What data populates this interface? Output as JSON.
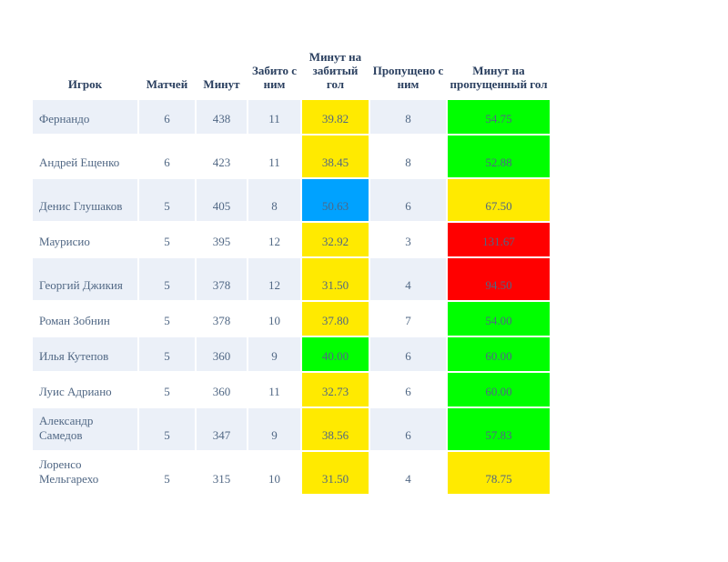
{
  "chart_data": {
    "type": "table",
    "columns": [
      "Игрок",
      "Матчей",
      "Минут",
      "Забито с ним",
      "Минут на забитый гол",
      "Пропущено с ним",
      "Минут на пропущенный гол"
    ],
    "rows": [
      {
        "player": "Фернандо",
        "matches": "6",
        "minutes": "438",
        "scored": "11",
        "min_per_scored": "39.82",
        "conceded": "8",
        "min_per_conceded": "54.75",
        "scored_color": "#ffea00",
        "conceded_color": "#00ff00"
      },
      {
        "player": "Андрей Ещенко",
        "matches": "6",
        "minutes": "423",
        "scored": "11",
        "min_per_scored": "38.45",
        "conceded": "8",
        "min_per_conceded": "52.88",
        "scored_color": "#ffea00",
        "conceded_color": "#00ff00"
      },
      {
        "player": "Денис Глушаков",
        "matches": "5",
        "minutes": "405",
        "scored": "8",
        "min_per_scored": "50.63",
        "conceded": "6",
        "min_per_conceded": "67.50",
        "scored_color": "#00a2ff",
        "conceded_color": "#ffea00"
      },
      {
        "player": "Маурисио",
        "matches": "5",
        "minutes": "395",
        "scored": "12",
        "min_per_scored": "32.92",
        "conceded": "3",
        "min_per_conceded": "131.67",
        "scored_color": "#ffea00",
        "conceded_color": "#ff0000"
      },
      {
        "player": "Георгий Джикия",
        "matches": "5",
        "minutes": "378",
        "scored": "12",
        "min_per_scored": "31.50",
        "conceded": "4",
        "min_per_conceded": "94.50",
        "scored_color": "#ffea00",
        "conceded_color": "#ff0000"
      },
      {
        "player": "Роман Зобнин",
        "matches": "5",
        "minutes": "378",
        "scored": "10",
        "min_per_scored": "37.80",
        "conceded": "7",
        "min_per_conceded": "54.00",
        "scored_color": "#ffea00",
        "conceded_color": "#00ff00"
      },
      {
        "player": "Илья Кутепов",
        "matches": "5",
        "minutes": "360",
        "scored": "9",
        "min_per_scored": "40.00",
        "conceded": "6",
        "min_per_conceded": "60.00",
        "scored_color": "#00ff00",
        "conceded_color": "#00ff00"
      },
      {
        "player": "Луис Адриано",
        "matches": "5",
        "minutes": "360",
        "scored": "11",
        "min_per_scored": "32.73",
        "conceded": "6",
        "min_per_conceded": "60.00",
        "scored_color": "#ffea00",
        "conceded_color": "#00ff00"
      },
      {
        "player": "Александр Самедов",
        "matches": "5",
        "minutes": "347",
        "scored": "9",
        "min_per_scored": "38.56",
        "conceded": "6",
        "min_per_conceded": "57.83",
        "scored_color": "#ffea00",
        "conceded_color": "#00ff00"
      },
      {
        "player": "Лоренсо Мельгарехо",
        "matches": "5",
        "minutes": "315",
        "scored": "10",
        "min_per_scored": "31.50",
        "conceded": "4",
        "min_per_conceded": "78.75",
        "scored_color": "#ffea00",
        "conceded_color": "#ffea00"
      }
    ]
  }
}
